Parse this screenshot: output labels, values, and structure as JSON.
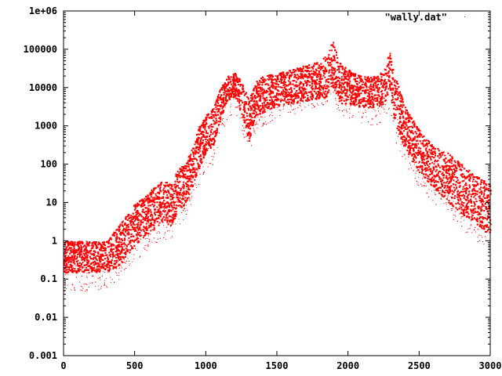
{
  "chart_data": {
    "type": "scatter",
    "title": "",
    "xlabel": "",
    "ylabel": "",
    "xlim": [
      0,
      3000
    ],
    "ylim": [
      0.001,
      1000000
    ],
    "yscale": "log",
    "grid": false,
    "legend_position": "top-right",
    "x_ticks": [
      "0",
      "500",
      "1000",
      "1500",
      "2000",
      "2500",
      "3000"
    ],
    "x_tick_values": [
      0,
      500,
      1000,
      1500,
      2000,
      2500,
      3000
    ],
    "y_ticks": [
      "0.001",
      "0.01",
      "0.1",
      "1",
      "10",
      "100",
      "1000",
      "10000",
      "100000",
      "1e+06"
    ],
    "y_tick_values": [
      0.001,
      0.01,
      0.1,
      1,
      10,
      100,
      1000,
      10000,
      100000,
      1000000
    ],
    "series": [
      {
        "name": "\"wally.dat\"",
        "color": "#ff0000",
        "marker": "dot",
        "envelope": {
          "x": [
            0,
            100,
            200,
            300,
            400,
            500,
            600,
            700,
            750,
            800,
            850,
            900,
            950,
            1000,
            1050,
            1100,
            1150,
            1200,
            1250,
            1300,
            1350,
            1400,
            1500,
            1600,
            1700,
            1800,
            1850,
            1890,
            1930,
            2000,
            2100,
            2200,
            2250,
            2290,
            2330,
            2400,
            2500,
            2600,
            2700,
            2800,
            2900,
            3000
          ],
          "upper": [
            1,
            1,
            1,
            1,
            3,
            10,
            20,
            40,
            30,
            80,
            100,
            300,
            1000,
            2000,
            3000,
            10000,
            20000,
            25000,
            15000,
            5000,
            15000,
            20000,
            25000,
            30000,
            40000,
            50000,
            80000,
            200000,
            50000,
            30000,
            20000,
            20000,
            30000,
            90000,
            20000,
            3000,
            800,
            300,
            200,
            100,
            50,
            30
          ],
          "median": [
            0.3,
            0.3,
            0.3,
            0.3,
            0.6,
            2,
            4,
            8,
            6,
            15,
            20,
            60,
            200,
            500,
            700,
            3000,
            8000,
            10000,
            4000,
            1000,
            4000,
            5000,
            7000,
            8000,
            10000,
            12000,
            15000,
            30000,
            10000,
            8000,
            6000,
            6000,
            8000,
            20000,
            3000,
            600,
            150,
            60,
            30,
            15,
            8,
            4
          ],
          "lower": [
            0.05,
            0.05,
            0.05,
            0.05,
            0.1,
            0.3,
            0.6,
            1,
            1,
            2,
            3,
            10,
            30,
            80,
            100,
            500,
            1500,
            2000,
            800,
            150,
            800,
            1000,
            1500,
            2000,
            2500,
            3000,
            4000,
            6000,
            2000,
            1500,
            1000,
            1000,
            1500,
            3000,
            400,
            100,
            25,
            10,
            5,
            2,
            1,
            0.5
          ]
        }
      }
    ]
  }
}
